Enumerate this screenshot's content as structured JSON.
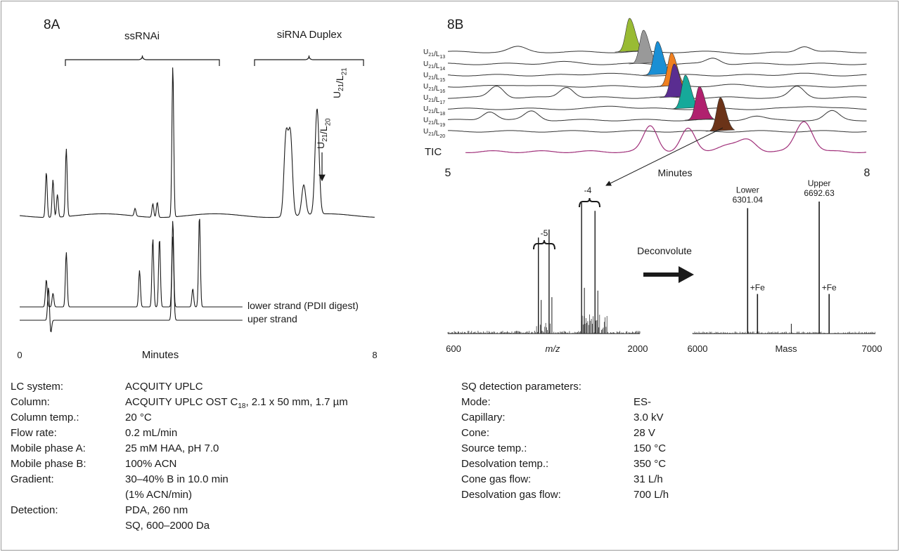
{
  "chart_data": [
    {
      "panel": "8A",
      "type": "line",
      "labels": {
        "panel": "8A",
        "left_group": "ssRNAi",
        "right_group": "siRNA Duplex",
        "peak_label_1": "U21/L20",
        "peak_label_2": "U21/L21"
      },
      "xlabel": "Minutes",
      "xlim": [
        0,
        8
      ],
      "ticks": [
        "0",
        "8"
      ],
      "series": [
        {
          "name": "",
          "peaks_minutes": [
            0.6,
            0.75,
            0.85,
            1.05,
            2.6,
            3.0,
            3.1,
            3.45,
            6.0,
            6.1,
            6.4,
            6.7
          ],
          "peak_heights": [
            0.3,
            0.25,
            0.15,
            0.45,
            0.05,
            0.09,
            0.1,
            1.0,
            0.53,
            0.53,
            0.2,
            0.7
          ]
        },
        {
          "name": "lower strand (PDII digest)",
          "peaks_minutes": [
            0.6,
            0.75,
            1.05,
            2.7,
            3.0,
            3.15,
            3.45,
            3.9,
            4.05
          ],
          "peak_heights": [
            0.3,
            0.15,
            0.6,
            0.4,
            0.75,
            0.75,
            0.95,
            0.2,
            1.0
          ]
        },
        {
          "name": "uper strand",
          "peaks_minutes": [
            0.65,
            3.45
          ],
          "peak_heights": [
            0.5,
            1.0
          ]
        }
      ]
    },
    {
      "panel": "8B",
      "type": "line",
      "labels": {
        "panel": "8B",
        "tic": "TIC"
      },
      "xlabel": "Minutes",
      "xlim": [
        5,
        8
      ],
      "ticks": [
        "5",
        "8"
      ],
      "traces": [
        {
          "name": "U21/L13",
          "peak_minutes": 6.3,
          "color": "#99bb33"
        },
        {
          "name": "U21/L14",
          "peak_minutes": 6.4,
          "color": "#999999"
        },
        {
          "name": "U21/L15",
          "peak_minutes": 6.5,
          "color": "#1a8fd5"
        },
        {
          "name": "U21/L16",
          "peak_minutes": 6.6,
          "color": "#f08020"
        },
        {
          "name": "U21/L17",
          "peak_minutes": 6.62,
          "color": "#5a2d91"
        },
        {
          "name": "U21/L18",
          "peak_minutes": 6.7,
          "color": "#16a99a"
        },
        {
          "name": "U21/L19",
          "peak_minutes": 6.8,
          "color": "#b0206e"
        },
        {
          "name": "U21/L20",
          "peak_minutes": 6.95,
          "color": "#6b3318"
        }
      ],
      "tic_color": "#a0307a"
    },
    {
      "panel": "8B-ms",
      "type": "bar",
      "xlabel": "m/z",
      "xlim": [
        600,
        2000
      ],
      "ticks": [
        "600",
        "2000"
      ],
      "charge_labels": [
        "-5",
        "-4"
      ],
      "values": [
        [
          1260,
          0.72
        ],
        [
          1338,
          0.78
        ],
        [
          1575,
          0.98
        ],
        [
          1673,
          0.92
        ]
      ]
    },
    {
      "panel": "8B-deconv",
      "type": "bar",
      "xlabel": "Mass",
      "xlim": [
        6000,
        7000
      ],
      "ticks": [
        "6000",
        "7000"
      ],
      "arrow_label": "Deconvolute",
      "peaks": [
        {
          "label": "Lower",
          "mass": "6301.04",
          "value": 6301.04,
          "height": 0.95
        },
        {
          "label": "+Fe",
          "mass": "",
          "value": 6355,
          "height": 0.3
        },
        {
          "label": "Upper",
          "mass": "6692.63",
          "value": 6692.63,
          "height": 1.0
        },
        {
          "label": "+Fe",
          "mass": "",
          "value": 6747,
          "height": 0.3
        }
      ]
    }
  ],
  "lc_params": [
    {
      "label": "LC system:",
      "value": "ACQUITY UPLC"
    },
    {
      "label": "Column:",
      "value": "ACQUITY UPLC OST C18, 2.1 x 50 mm, 1.7 µm"
    },
    {
      "label": "Column temp.:",
      "value": "20 °C"
    },
    {
      "label": "Flow rate:",
      "value": "0.2 mL/min"
    },
    {
      "label": "Mobile phase A:",
      "value": "25 mM HAA, pH 7.0"
    },
    {
      "label": "Mobile phase B:",
      "value": "100% ACN"
    },
    {
      "label": "Gradient:",
      "value": "30–40% B in 10.0 min"
    },
    {
      "label": "",
      "value": "(1% ACN/min)"
    },
    {
      "label": "Detection:",
      "value": "PDA, 260 nm"
    },
    {
      "label": "",
      "value": "SQ, 600–2000 Da"
    }
  ],
  "sq_params": {
    "title": "SQ detection parameters:",
    "rows": [
      {
        "label": "Mode:",
        "value": "ES-"
      },
      {
        "label": "Capillary:",
        "value": "3.0 kV"
      },
      {
        "label": "Cone:",
        "value": "28 V"
      },
      {
        "label": "Source temp.:",
        "value": "150 °C"
      },
      {
        "label": "Desolvation temp.:",
        "value": "350 °C"
      },
      {
        "label": "Cone gas flow:",
        "value": "31 L/h"
      },
      {
        "label": "Desolvation gas flow:",
        "value": "700 L/h"
      }
    ]
  }
}
